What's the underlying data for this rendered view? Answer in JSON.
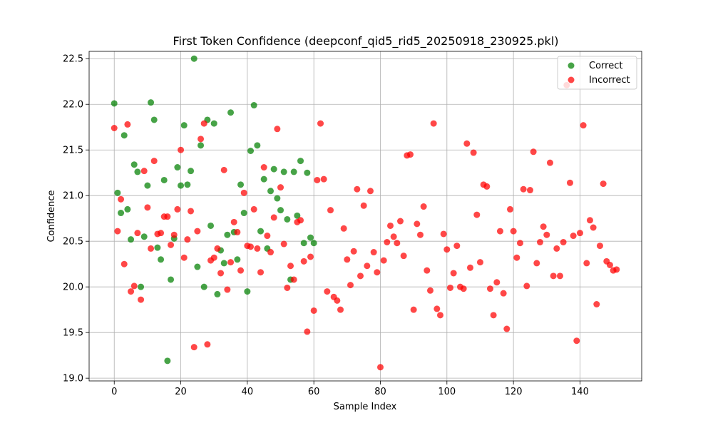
{
  "chart_data": {
    "type": "scatter",
    "title": "First Token Confidence (deepconf_qid5_rid5_20250918_230925.pkl)",
    "xlabel": "Sample Index",
    "ylabel": "Confidence",
    "xlim": [
      -7.55,
      158.55
    ],
    "ylim": [
      18.97,
      22.58
    ],
    "xticks": [
      0,
      20,
      40,
      60,
      80,
      100,
      120,
      140
    ],
    "yticks": [
      19.0,
      19.5,
      20.0,
      20.5,
      21.0,
      21.5,
      22.0,
      22.5
    ],
    "ytick_labels": [
      "19.0",
      "19.5",
      "20.0",
      "20.5",
      "21.0",
      "21.5",
      "22.0",
      "22.5"
    ],
    "grid": true,
    "legend_position": "top-right",
    "series": [
      {
        "name": "Correct",
        "color": "#008000",
        "points": [
          [
            0,
            22.01
          ],
          [
            1,
            21.03
          ],
          [
            2,
            20.81
          ],
          [
            3,
            21.66
          ],
          [
            4,
            20.85
          ],
          [
            5,
            20.52
          ],
          [
            6,
            21.34
          ],
          [
            7,
            21.26
          ],
          [
            8,
            20.0
          ],
          [
            9,
            20.55
          ],
          [
            10,
            21.11
          ],
          [
            11,
            22.02
          ],
          [
            12,
            21.83
          ],
          [
            13,
            20.43
          ],
          [
            14,
            20.3
          ],
          [
            15,
            21.17
          ],
          [
            16,
            19.19
          ],
          [
            17,
            20.08
          ],
          [
            18,
            20.53
          ],
          [
            19,
            21.31
          ],
          [
            20,
            21.11
          ],
          [
            21,
            21.77
          ],
          [
            22,
            21.12
          ],
          [
            23,
            21.27
          ],
          [
            24,
            22.5
          ],
          [
            25,
            20.22
          ],
          [
            26,
            21.55
          ],
          [
            27,
            20.0
          ],
          [
            28,
            21.83
          ],
          [
            29,
            20.67
          ],
          [
            30,
            21.79
          ],
          [
            31,
            19.92
          ],
          [
            32,
            20.4
          ],
          [
            33,
            20.26
          ],
          [
            34,
            20.57
          ],
          [
            35,
            21.91
          ],
          [
            36,
            20.6
          ],
          [
            37,
            20.3
          ],
          [
            38,
            21.12
          ],
          [
            39,
            20.81
          ],
          [
            40,
            19.95
          ],
          [
            41,
            21.49
          ],
          [
            42,
            21.99
          ],
          [
            43,
            21.55
          ],
          [
            44,
            20.61
          ],
          [
            45,
            21.18
          ],
          [
            46,
            20.42
          ],
          [
            47,
            21.05
          ],
          [
            48,
            21.29
          ],
          [
            49,
            20.97
          ],
          [
            50,
            20.84
          ],
          [
            51,
            21.26
          ],
          [
            52,
            20.74
          ],
          [
            53,
            20.08
          ],
          [
            54,
            21.26
          ],
          [
            55,
            20.78
          ],
          [
            56,
            21.38
          ],
          [
            57,
            20.48
          ],
          [
            58,
            21.25
          ],
          [
            59,
            20.54
          ],
          [
            60,
            20.48
          ]
        ]
      },
      {
        "name": "Incorrect",
        "color": "#ff0000",
        "points": [
          [
            0,
            21.74
          ],
          [
            1,
            20.61
          ],
          [
            2,
            20.96
          ],
          [
            3,
            20.25
          ],
          [
            4,
            21.78
          ],
          [
            5,
            19.95
          ],
          [
            6,
            20.01
          ],
          [
            7,
            20.59
          ],
          [
            8,
            19.86
          ],
          [
            9,
            21.27
          ],
          [
            10,
            20.87
          ],
          [
            11,
            20.42
          ],
          [
            12,
            21.38
          ],
          [
            13,
            20.58
          ],
          [
            14,
            20.59
          ],
          [
            15,
            20.77
          ],
          [
            16,
            20.77
          ],
          [
            17,
            20.46
          ],
          [
            18,
            20.57
          ],
          [
            19,
            20.85
          ],
          [
            20,
            21.5
          ],
          [
            21,
            20.32
          ],
          [
            22,
            20.52
          ],
          [
            23,
            20.83
          ],
          [
            24,
            19.34
          ],
          [
            25,
            20.61
          ],
          [
            26,
            21.62
          ],
          [
            27,
            21.79
          ],
          [
            28,
            19.37
          ],
          [
            29,
            20.29
          ],
          [
            30,
            20.32
          ],
          [
            31,
            20.42
          ],
          [
            32,
            20.15
          ],
          [
            33,
            21.28
          ],
          [
            34,
            19.97
          ],
          [
            35,
            20.27
          ],
          [
            36,
            20.71
          ],
          [
            37,
            20.6
          ],
          [
            38,
            20.18
          ],
          [
            39,
            21.03
          ],
          [
            40,
            20.45
          ],
          [
            41,
            20.44
          ],
          [
            42,
            20.85
          ],
          [
            43,
            20.42
          ],
          [
            44,
            20.16
          ],
          [
            45,
            21.31
          ],
          [
            46,
            20.56
          ],
          [
            47,
            20.38
          ],
          [
            48,
            20.76
          ],
          [
            49,
            21.73
          ],
          [
            50,
            21.09
          ],
          [
            51,
            20.47
          ],
          [
            52,
            19.99
          ],
          [
            53,
            20.23
          ],
          [
            54,
            20.08
          ],
          [
            55,
            20.71
          ],
          [
            56,
            20.73
          ],
          [
            57,
            20.28
          ],
          [
            58,
            19.51
          ],
          [
            59,
            20.33
          ],
          [
            60,
            19.74
          ],
          [
            61,
            21.17
          ],
          [
            62,
            21.79
          ],
          [
            63,
            21.18
          ],
          [
            64,
            19.95
          ],
          [
            65,
            20.84
          ],
          [
            66,
            19.89
          ],
          [
            67,
            19.85
          ],
          [
            68,
            19.75
          ],
          [
            69,
            20.64
          ],
          [
            70,
            20.3
          ],
          [
            71,
            20.02
          ],
          [
            72,
            20.39
          ],
          [
            73,
            21.07
          ],
          [
            74,
            20.12
          ],
          [
            75,
            20.89
          ],
          [
            76,
            20.23
          ],
          [
            77,
            21.05
          ],
          [
            78,
            20.38
          ],
          [
            79,
            20.16
          ],
          [
            80,
            19.12
          ],
          [
            81,
            20.29
          ],
          [
            82,
            20.49
          ],
          [
            83,
            20.67
          ],
          [
            84,
            20.55
          ],
          [
            85,
            20.48
          ],
          [
            86,
            20.72
          ],
          [
            87,
            20.34
          ],
          [
            88,
            21.44
          ],
          [
            89,
            21.45
          ],
          [
            90,
            19.75
          ],
          [
            91,
            20.69
          ],
          [
            92,
            20.57
          ],
          [
            93,
            20.88
          ],
          [
            94,
            20.18
          ],
          [
            95,
            19.96
          ],
          [
            96,
            21.79
          ],
          [
            97,
            19.76
          ],
          [
            98,
            19.69
          ],
          [
            99,
            20.58
          ],
          [
            100,
            20.41
          ],
          [
            101,
            19.99
          ],
          [
            102,
            20.15
          ],
          [
            103,
            20.45
          ],
          [
            104,
            20.0
          ],
          [
            105,
            19.98
          ],
          [
            106,
            21.57
          ],
          [
            107,
            20.21
          ],
          [
            108,
            21.47
          ],
          [
            109,
            20.79
          ],
          [
            110,
            20.27
          ],
          [
            111,
            21.12
          ],
          [
            112,
            21.1
          ],
          [
            113,
            19.98
          ],
          [
            114,
            19.69
          ],
          [
            115,
            20.05
          ],
          [
            116,
            20.61
          ],
          [
            117,
            19.93
          ],
          [
            118,
            19.54
          ],
          [
            119,
            20.85
          ],
          [
            120,
            20.61
          ],
          [
            121,
            20.32
          ],
          [
            122,
            20.48
          ],
          [
            123,
            21.07
          ],
          [
            124,
            20.01
          ],
          [
            125,
            21.06
          ],
          [
            126,
            21.48
          ],
          [
            127,
            20.26
          ],
          [
            128,
            20.49
          ],
          [
            129,
            20.66
          ],
          [
            130,
            20.57
          ],
          [
            131,
            21.36
          ],
          [
            132,
            20.12
          ],
          [
            133,
            20.42
          ],
          [
            134,
            20.12
          ],
          [
            135,
            20.49
          ],
          [
            136,
            22.21
          ],
          [
            137,
            21.14
          ],
          [
            138,
            20.56
          ],
          [
            139,
            19.41
          ],
          [
            140,
            20.59
          ],
          [
            141,
            21.77
          ],
          [
            142,
            20.26
          ],
          [
            143,
            20.73
          ],
          [
            144,
            20.65
          ],
          [
            145,
            19.81
          ],
          [
            146,
            20.45
          ],
          [
            147,
            21.13
          ],
          [
            148,
            20.28
          ],
          [
            149,
            20.24
          ],
          [
            150,
            20.18
          ],
          [
            151,
            20.19
          ]
        ]
      }
    ]
  }
}
